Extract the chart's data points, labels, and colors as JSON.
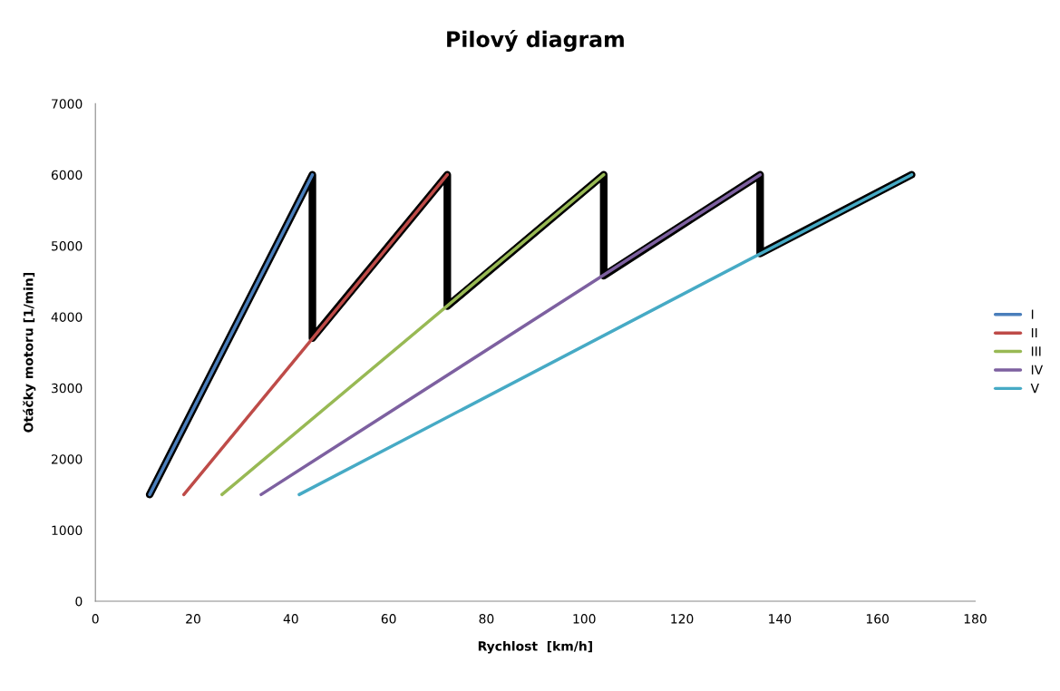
{
  "chart_data": {
    "type": "line",
    "title": "Pilový diagram",
    "xlabel": "Rychlost  [km/h]",
    "ylabel": "Otáčky motoru [1/min]",
    "xlim": [
      0,
      180
    ],
    "xticks": [
      0,
      20,
      40,
      60,
      80,
      100,
      120,
      140,
      160,
      180
    ],
    "ylim": [
      0,
      7000
    ],
    "yticks": [
      0,
      1000,
      2000,
      3000,
      4000,
      5000,
      6000,
      7000
    ],
    "grid": false,
    "legend": "right",
    "marker": "none",
    "line_style": "solid",
    "series": [
      {
        "name": "I",
        "color": "#4a7ebb",
        "x": [
          11.1,
          44.4
        ],
        "values": [
          1500,
          6000
        ]
      },
      {
        "name": "II",
        "color": "#be4b48",
        "x": [
          18.1,
          72
        ],
        "values": [
          1500,
          6000
        ]
      },
      {
        "name": "III",
        "color": "#98b954",
        "x": [
          25.9,
          104
        ],
        "values": [
          1500,
          6000
        ]
      },
      {
        "name": "IV",
        "color": "#7d60a0",
        "x": [
          33.9,
          136
        ],
        "values": [
          1500,
          6000
        ]
      },
      {
        "name": "V",
        "color": "#46aac5",
        "x": [
          41.7,
          167
        ],
        "values": [
          1500,
          6000
        ]
      },
      {
        "color": "#000000",
        "x": [
          11.1,
          44.4,
          44.4,
          72,
          72,
          104,
          104,
          136,
          136,
          167
        ],
        "values": [
          1500,
          6000,
          3700,
          6000,
          4150,
          6000,
          4580,
          6000,
          4890,
          6000
        ]
      }
    ]
  }
}
